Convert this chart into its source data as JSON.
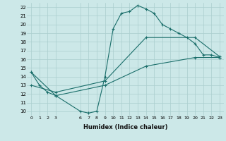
{
  "xlabel": "Humidex (Indice chaleur)",
  "bg_color": "#cce8e8",
  "grid_color": "#aacece",
  "line_color": "#1a6e6a",
  "xlim": [
    -0.5,
    23.5
  ],
  "ylim": [
    9.5,
    22.5
  ],
  "xticks": [
    0,
    1,
    2,
    3,
    6,
    7,
    8,
    9,
    10,
    11,
    12,
    13,
    14,
    15,
    16,
    17,
    18,
    19,
    20,
    21,
    22,
    23
  ],
  "yticks": [
    10,
    11,
    12,
    13,
    14,
    15,
    16,
    17,
    18,
    19,
    20,
    21,
    22
  ],
  "line1_x": [
    0,
    1,
    2,
    3,
    6,
    7,
    8,
    9,
    10,
    11,
    12,
    13,
    14,
    15,
    16,
    17,
    18,
    19,
    20,
    21,
    22,
    23
  ],
  "line1_y": [
    14.5,
    13.0,
    12.2,
    11.8,
    10.0,
    9.8,
    10.0,
    14.0,
    19.5,
    21.3,
    21.5,
    22.2,
    21.8,
    21.3,
    20.0,
    19.5,
    19.0,
    18.5,
    17.8,
    16.5,
    16.5,
    16.2
  ],
  "line2_x": [
    0,
    3,
    9,
    14,
    20,
    23
  ],
  "line2_y": [
    13.0,
    12.2,
    13.5,
    18.5,
    18.5,
    16.3
  ],
  "line3_x": [
    0,
    3,
    9,
    14,
    20,
    23
  ],
  "line3_y": [
    14.5,
    11.8,
    13.0,
    15.2,
    16.2,
    16.2
  ]
}
